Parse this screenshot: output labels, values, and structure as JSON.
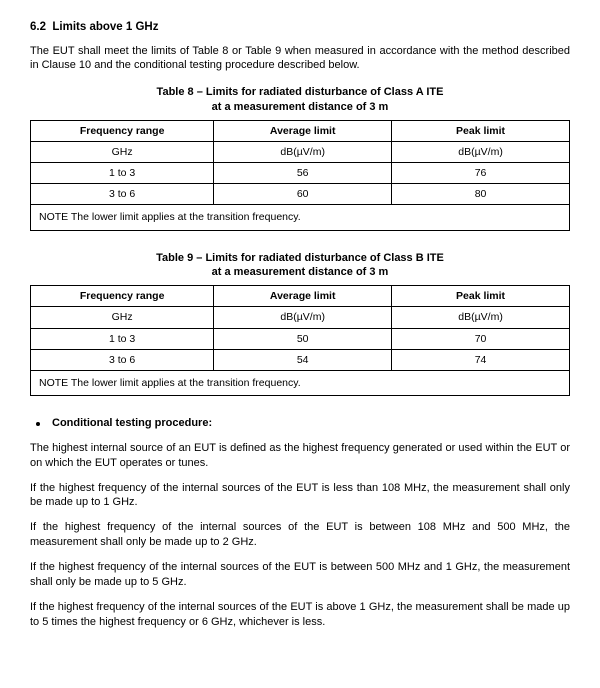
{
  "section": {
    "number": "6.2",
    "title": "Limits above 1 GHz",
    "intro": "The EUT shall meet the limits of Table 8 or Table 9 when measured in accordance with the method described in Clause 10 and the conditional testing procedure described below."
  },
  "table8": {
    "caption_line1": "Table 8 – Limits for radiated disturbance of Class A ITE",
    "caption_line2": "at a measurement distance of 3 m",
    "headers": {
      "freq": "Frequency range",
      "avg": "Average limit",
      "peak": "Peak limit"
    },
    "units": {
      "freq": "GHz",
      "avg": "dB(µV/m)",
      "peak": "dB(µV/m)"
    },
    "rows": [
      {
        "freq": "1 to 3",
        "avg": "56",
        "peak": "76"
      },
      {
        "freq": "3 to 6",
        "avg": "60",
        "peak": "80"
      }
    ],
    "note": "NOTE   The lower limit applies at the transition frequency."
  },
  "table9": {
    "caption_line1": "Table 9 – Limits for radiated disturbance of Class B ITE",
    "caption_line2": "at a measurement distance of 3 m",
    "headers": {
      "freq": "Frequency range",
      "avg": "Average limit",
      "peak": "Peak limit"
    },
    "units": {
      "freq": "GHz",
      "avg": "dB(µV/m)",
      "peak": "dB(µV/m)"
    },
    "rows": [
      {
        "freq": "1 to 3",
        "avg": "50",
        "peak": "70"
      },
      {
        "freq": "3 to 6",
        "avg": "54",
        "peak": "74"
      }
    ],
    "note": "NOTE   The lower limit applies at the transition frequency."
  },
  "conditional": {
    "heading": "Conditional testing procedure:",
    "paras": [
      "The highest internal source of an EUT is defined as the highest frequency generated or used within the EUT or on which the EUT operates or tunes.",
      "If the highest frequency of the internal sources of the EUT is less than 108 MHz, the measurement shall only be made up to 1 GHz.",
      "If the highest frequency of the internal sources of the EUT is between 108 MHz and 500 MHz, the measurement shall only be made up to 2 GHz.",
      "If the highest frequency of the internal sources of the EUT is between 500 MHz and 1 GHz, the measurement shall only be made up to 5 GHz.",
      "If the highest frequency of the internal sources of the EUT is above 1 GHz, the measurement shall be made up to 5 times the highest frequency or 6 GHz, whichever is less."
    ]
  },
  "layout": {
    "col_widths": [
      "34%",
      "33%",
      "33%"
    ]
  }
}
